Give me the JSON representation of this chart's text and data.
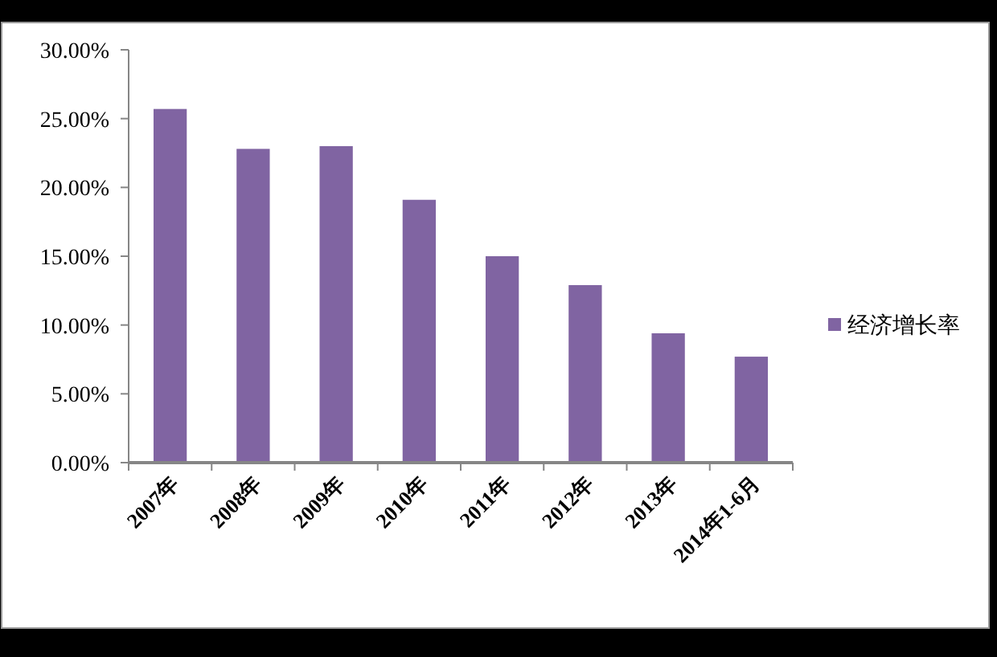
{
  "chart_data": {
    "type": "bar",
    "categories": [
      "2007年",
      "2008年",
      "2009年",
      "2010年",
      "2011年",
      "2012年",
      "2013年",
      "2014年1-6月"
    ],
    "series": [
      {
        "name": "经济增长率",
        "color": "#8064a2",
        "values": [
          25.7,
          22.8,
          23.0,
          19.1,
          15.0,
          12.9,
          9.4,
          7.7
        ]
      }
    ],
    "ylim": [
      0,
      30
    ],
    "yticks": [
      {
        "value": 0,
        "label": "0.00%"
      },
      {
        "value": 5,
        "label": "5.00%"
      },
      {
        "value": 10,
        "label": "10.00%"
      },
      {
        "value": 15,
        "label": "15.00%"
      },
      {
        "value": 20,
        "label": "20.00%"
      },
      {
        "value": 25,
        "label": "25.00%"
      },
      {
        "value": 30,
        "label": "30.00%"
      }
    ],
    "grid": false,
    "legend": "right"
  }
}
